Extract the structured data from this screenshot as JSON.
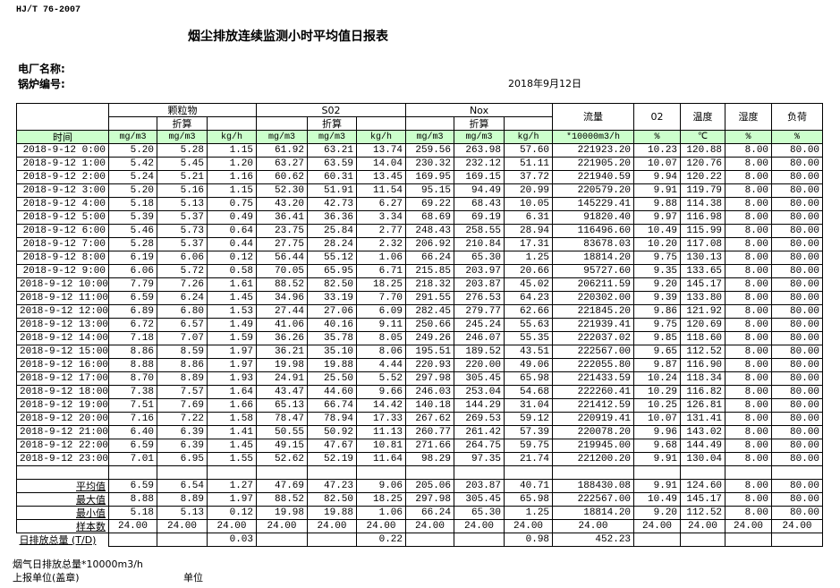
{
  "standard": "HJ/T  76-2007",
  "title": "烟尘排放连续监测小时平均值日报表",
  "plant_label": "电厂名称:",
  "boiler_label": "锅炉编号:",
  "date": "2018年9月12日",
  "header": {
    "particulate": "颗粒物",
    "so2": "S02",
    "nox": "Nox",
    "converted": "折算",
    "flow": "流量",
    "o2": "02",
    "temp": "温度",
    "humidity": "湿度",
    "load": "负荷",
    "time": "时间",
    "units": [
      "mg/m3",
      "mg/m3",
      "kg/h",
      "mg/m3",
      "mg/m3",
      "kg/h",
      "mg/m3",
      "mg/m3",
      "kg/h",
      "*10000m3/h",
      "%",
      "℃",
      "%",
      "%"
    ]
  },
  "rows": [
    [
      "2018-9-12 0:00",
      "5.20",
      "5.28",
      "1.15",
      "61.92",
      "63.21",
      "13.74",
      "259.56",
      "263.98",
      "57.60",
      "221923.20",
      "10.23",
      "120.88",
      "8.00",
      "80.00"
    ],
    [
      "2018-9-12 1:00",
      "5.42",
      "5.45",
      "1.20",
      "63.27",
      "63.59",
      "14.04",
      "230.32",
      "232.12",
      "51.11",
      "221905.20",
      "10.07",
      "120.76",
      "8.00",
      "80.00"
    ],
    [
      "2018-9-12 2:00",
      "5.24",
      "5.21",
      "1.16",
      "60.62",
      "60.31",
      "13.45",
      "169.95",
      "169.15",
      "37.72",
      "221940.59",
      "9.94",
      "120.22",
      "8.00",
      "80.00"
    ],
    [
      "2018-9-12 3:00",
      "5.20",
      "5.16",
      "1.15",
      "52.30",
      "51.91",
      "11.54",
      "95.15",
      "94.49",
      "20.99",
      "220579.20",
      "9.91",
      "119.79",
      "8.00",
      "80.00"
    ],
    [
      "2018-9-12 4:00",
      "5.18",
      "5.13",
      "0.75",
      "43.20",
      "42.73",
      "6.27",
      "69.22",
      "68.43",
      "10.05",
      "145229.41",
      "9.88",
      "114.38",
      "8.00",
      "80.00"
    ],
    [
      "2018-9-12 5:00",
      "5.39",
      "5.37",
      "0.49",
      "36.41",
      "36.36",
      "3.34",
      "68.69",
      "69.19",
      "6.31",
      "91820.40",
      "9.97",
      "116.98",
      "8.00",
      "80.00"
    ],
    [
      "2018-9-12 6:00",
      "5.46",
      "5.73",
      "0.64",
      "23.75",
      "25.84",
      "2.77",
      "248.43",
      "258.55",
      "28.94",
      "116496.60",
      "10.49",
      "115.99",
      "8.00",
      "80.00"
    ],
    [
      "2018-9-12 7:00",
      "5.28",
      "5.37",
      "0.44",
      "27.75",
      "28.24",
      "2.32",
      "206.92",
      "210.84",
      "17.31",
      "83678.03",
      "10.20",
      "117.08",
      "8.00",
      "80.00"
    ],
    [
      "2018-9-12 8:00",
      "6.19",
      "6.06",
      "0.12",
      "56.44",
      "55.12",
      "1.06",
      "66.24",
      "65.30",
      "1.25",
      "18814.20",
      "9.75",
      "130.13",
      "8.00",
      "80.00"
    ],
    [
      "2018-9-12 9:00",
      "6.06",
      "5.72",
      "0.58",
      "70.05",
      "65.95",
      "6.71",
      "215.85",
      "203.97",
      "20.66",
      "95727.60",
      "9.35",
      "133.65",
      "8.00",
      "80.00"
    ],
    [
      "2018-9-12 10:00",
      "7.79",
      "7.26",
      "1.61",
      "88.52",
      "82.50",
      "18.25",
      "218.32",
      "203.87",
      "45.02",
      "206211.59",
      "9.20",
      "145.17",
      "8.00",
      "80.00"
    ],
    [
      "2018-9-12 11:00",
      "6.59",
      "6.24",
      "1.45",
      "34.96",
      "33.19",
      "7.70",
      "291.55",
      "276.53",
      "64.23",
      "220302.00",
      "9.39",
      "133.80",
      "8.00",
      "80.00"
    ],
    [
      "2018-9-12 12:00",
      "6.89",
      "6.80",
      "1.53",
      "27.44",
      "27.06",
      "6.09",
      "282.45",
      "279.77",
      "62.66",
      "221845.20",
      "9.86",
      "121.92",
      "8.00",
      "80.00"
    ],
    [
      "2018-9-12 13:00",
      "6.72",
      "6.57",
      "1.49",
      "41.06",
      "40.16",
      "9.11",
      "250.66",
      "245.24",
      "55.63",
      "221939.41",
      "9.75",
      "120.69",
      "8.00",
      "80.00"
    ],
    [
      "2018-9-12 14:00",
      "7.18",
      "7.07",
      "1.59",
      "36.26",
      "35.78",
      "8.05",
      "249.26",
      "246.07",
      "55.35",
      "222037.02",
      "9.85",
      "118.60",
      "8.00",
      "80.00"
    ],
    [
      "2018-9-12 15:00",
      "8.86",
      "8.59",
      "1.97",
      "36.21",
      "35.10",
      "8.06",
      "195.51",
      "189.52",
      "43.51",
      "222567.00",
      "9.65",
      "112.52",
      "8.00",
      "80.00"
    ],
    [
      "2018-9-12 16:00",
      "8.88",
      "8.86",
      "1.97",
      "19.98",
      "19.88",
      "4.44",
      "220.93",
      "220.00",
      "49.06",
      "222055.80",
      "9.87",
      "116.90",
      "8.00",
      "80.00"
    ],
    [
      "2018-9-12 17:00",
      "8.70",
      "8.89",
      "1.93",
      "24.91",
      "25.50",
      "5.52",
      "297.98",
      "305.45",
      "65.98",
      "221433.59",
      "10.24",
      "118.34",
      "8.00",
      "80.00"
    ],
    [
      "2018-9-12 18:00",
      "7.38",
      "7.57",
      "1.64",
      "43.47",
      "44.60",
      "9.66",
      "246.03",
      "253.04",
      "54.68",
      "222260.41",
      "10.29",
      "116.82",
      "8.00",
      "80.00"
    ],
    [
      "2018-9-12 19:00",
      "7.51",
      "7.69",
      "1.66",
      "65.13",
      "66.74",
      "14.42",
      "140.18",
      "144.29",
      "31.04",
      "221412.59",
      "10.25",
      "126.81",
      "8.00",
      "80.00"
    ],
    [
      "2018-9-12 20:00",
      "7.16",
      "7.22",
      "1.58",
      "78.47",
      "78.94",
      "17.33",
      "267.62",
      "269.53",
      "59.12",
      "220919.41",
      "10.07",
      "131.41",
      "8.00",
      "80.00"
    ],
    [
      "2018-9-12 21:00",
      "6.40",
      "6.39",
      "1.41",
      "50.55",
      "50.92",
      "11.13",
      "260.77",
      "261.42",
      "57.39",
      "220078.20",
      "9.96",
      "143.02",
      "8.00",
      "80.00"
    ],
    [
      "2018-9-12 22:00",
      "6.59",
      "6.39",
      "1.45",
      "49.15",
      "47.67",
      "10.81",
      "271.66",
      "264.75",
      "59.75",
      "219945.00",
      "9.68",
      "144.49",
      "8.00",
      "80.00"
    ],
    [
      "2018-9-12 23:00",
      "7.01",
      "6.95",
      "1.55",
      "52.62",
      "52.19",
      "11.64",
      "98.29",
      "97.35",
      "21.74",
      "221200.20",
      "9.91",
      "130.04",
      "8.00",
      "80.00"
    ]
  ],
  "summary": [
    {
      "label": "平均值",
      "values": [
        "6.59",
        "6.54",
        "1.27",
        "47.69",
        "47.23",
        "9.06",
        "205.06",
        "203.87",
        "40.71",
        "188430.08",
        "9.91",
        "124.60",
        "8.00",
        "80.00"
      ]
    },
    {
      "label": "最大值",
      "values": [
        "8.88",
        "8.89",
        "1.97",
        "88.52",
        "82.50",
        "18.25",
        "297.98",
        "305.45",
        "65.98",
        "222567.00",
        "10.49",
        "145.17",
        "8.00",
        "80.00"
      ]
    },
    {
      "label": "最小值",
      "values": [
        "5.18",
        "5.13",
        "0.12",
        "19.98",
        "19.88",
        "1.06",
        "66.24",
        "65.30",
        "1.25",
        "18814.20",
        "9.20",
        "112.52",
        "8.00",
        "80.00"
      ]
    },
    {
      "label": "样本数",
      "values": [
        "24.00",
        "24.00",
        "24.00",
        "24.00",
        "24.00",
        "24.00",
        "24.00",
        "24.00",
        "24.00",
        "24.00",
        "24.00",
        "24.00",
        "24.00",
        "24.00"
      ]
    }
  ],
  "daily_total": {
    "label": "日排放总量 (T/D)",
    "values": [
      "",
      "",
      "0.03",
      "",
      "",
      "0.22",
      "",
      "",
      "0.98",
      "452.23",
      "",
      "",
      "",
      ""
    ]
  },
  "footer": {
    "flue_gas_total": "烟气日排放总量*10000m3/h",
    "reporting_unit": "上报单位(盖章)",
    "unit": "单位"
  },
  "colors": {
    "unit_row_bg": "#ccffcc"
  }
}
